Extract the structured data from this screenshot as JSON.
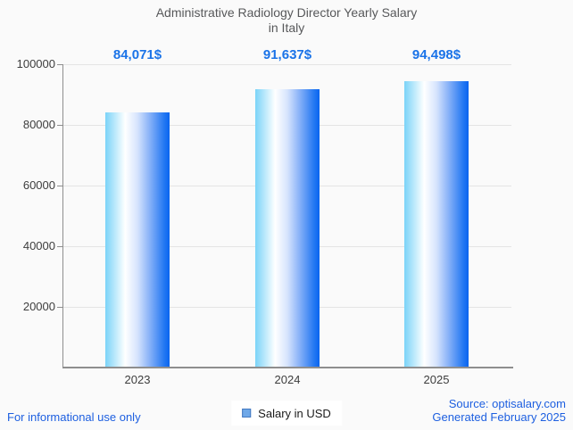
{
  "title": {
    "line1": "Administrative Radiology Director Yearly Salary",
    "line2": "in Italy"
  },
  "chart_data": {
    "type": "bar",
    "categories": [
      "2023",
      "2024",
      "2025"
    ],
    "series": [
      {
        "name": "Salary in USD",
        "values": [
          84071,
          91637,
          94498
        ]
      }
    ],
    "value_labels": [
      "84,071$",
      "91,637$",
      "94,498$"
    ],
    "title": "Administrative Radiology Director Yearly Salary in Italy",
    "xlabel": "",
    "ylabel": "",
    "ylim": [
      0,
      100000
    ],
    "yticks": [
      20000,
      40000,
      60000,
      80000,
      100000
    ],
    "ytick_labels": [
      "20000",
      "40000",
      "60000",
      "80000",
      "100000"
    ],
    "grid": true,
    "legend_position": "bottom"
  },
  "legend": {
    "label": "Salary in USD"
  },
  "footer": {
    "left": "For informational use only",
    "source": "Source: optisalary.com",
    "generated": "Generated February 2025"
  },
  "colors": {
    "value_label_blue": "#1a73e8",
    "footer_blue": "#1d5fe0",
    "title_gray": "#57585a",
    "axis_text_gray": "#3d3d3d",
    "gridline_gray": "#e4e4e4",
    "axis_line_gray": "#8e8e8e",
    "background": "#fafafa",
    "legend_swatch_fill": "#6fa8e8",
    "legend_swatch_border": "#4479c0",
    "bar_gradient_stops": [
      "#7ad3f8 0%",
      "#ffffff 31%",
      "#d6e4fd 50%",
      "#8cb4f8 68%",
      "#2277f2 92%",
      "#0a64f0 100%"
    ]
  }
}
